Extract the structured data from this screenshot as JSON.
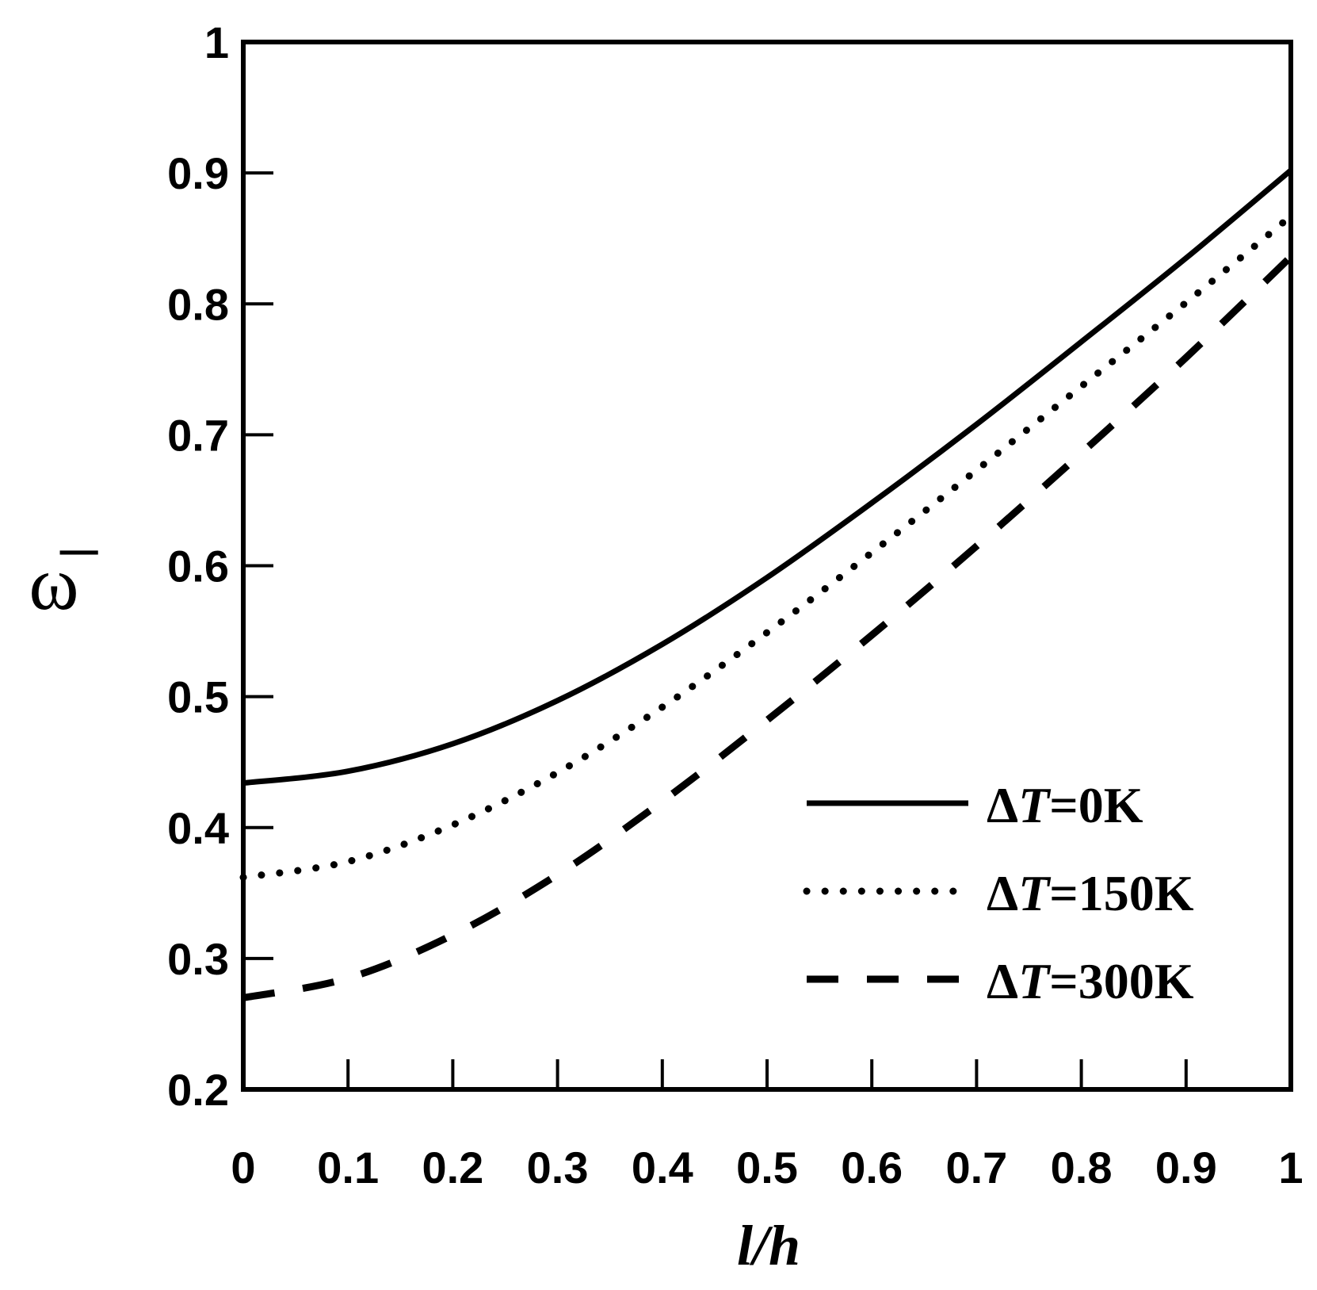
{
  "chart_data": {
    "type": "line",
    "title": "",
    "xlabel": "l/h",
    "ylabel": "ω̅",
    "xlim": [
      0,
      1
    ],
    "ylim": [
      0.2,
      1
    ],
    "x_ticks": [
      "0",
      "0.1",
      "0.2",
      "0.3",
      "0.4",
      "0.5",
      "0.6",
      "0.7",
      "0.8",
      "0.9",
      "1"
    ],
    "y_ticks": [
      "0.2",
      "0.3",
      "0.4",
      "0.5",
      "0.6",
      "0.7",
      "0.8",
      "0.9",
      "1"
    ],
    "x_tick_values": [
      0,
      0.1,
      0.2,
      0.3,
      0.4,
      0.5,
      0.6,
      0.7,
      0.8,
      0.9,
      1
    ],
    "y_tick_values": [
      0.2,
      0.3,
      0.4,
      0.5,
      0.6,
      0.7,
      0.8,
      0.9,
      1
    ],
    "grid": false,
    "legend_position": "bottom-right",
    "x": [
      0,
      0.1,
      0.2,
      0.3,
      0.4,
      0.5,
      0.6,
      0.7,
      0.8,
      0.9,
      1
    ],
    "series": [
      {
        "name": "ΔT=0K",
        "label_prefix": "Δ",
        "label_italic": "T",
        "label_suffix": "=0K",
        "style": "solid",
        "values": [
          0.434,
          0.443,
          0.464,
          0.497,
          0.54,
          0.591,
          0.648,
          0.708,
          0.771,
          0.835,
          0.902
        ]
      },
      {
        "name": "ΔT=150K",
        "label_prefix": "Δ",
        "label_italic": "T",
        "label_suffix": "=150K",
        "style": "dotted",
        "values": [
          0.362,
          0.374,
          0.402,
          0.442,
          0.492,
          0.549,
          0.61,
          0.673,
          0.737,
          0.801,
          0.867
        ]
      },
      {
        "name": "ΔT=300K",
        "label_prefix": "Δ",
        "label_italic": "T",
        "label_suffix": "=300K",
        "style": "dashed",
        "values": [
          0.27,
          0.285,
          0.318,
          0.364,
          0.42,
          0.482,
          0.547,
          0.615,
          0.686,
          0.759,
          0.836
        ]
      }
    ]
  }
}
